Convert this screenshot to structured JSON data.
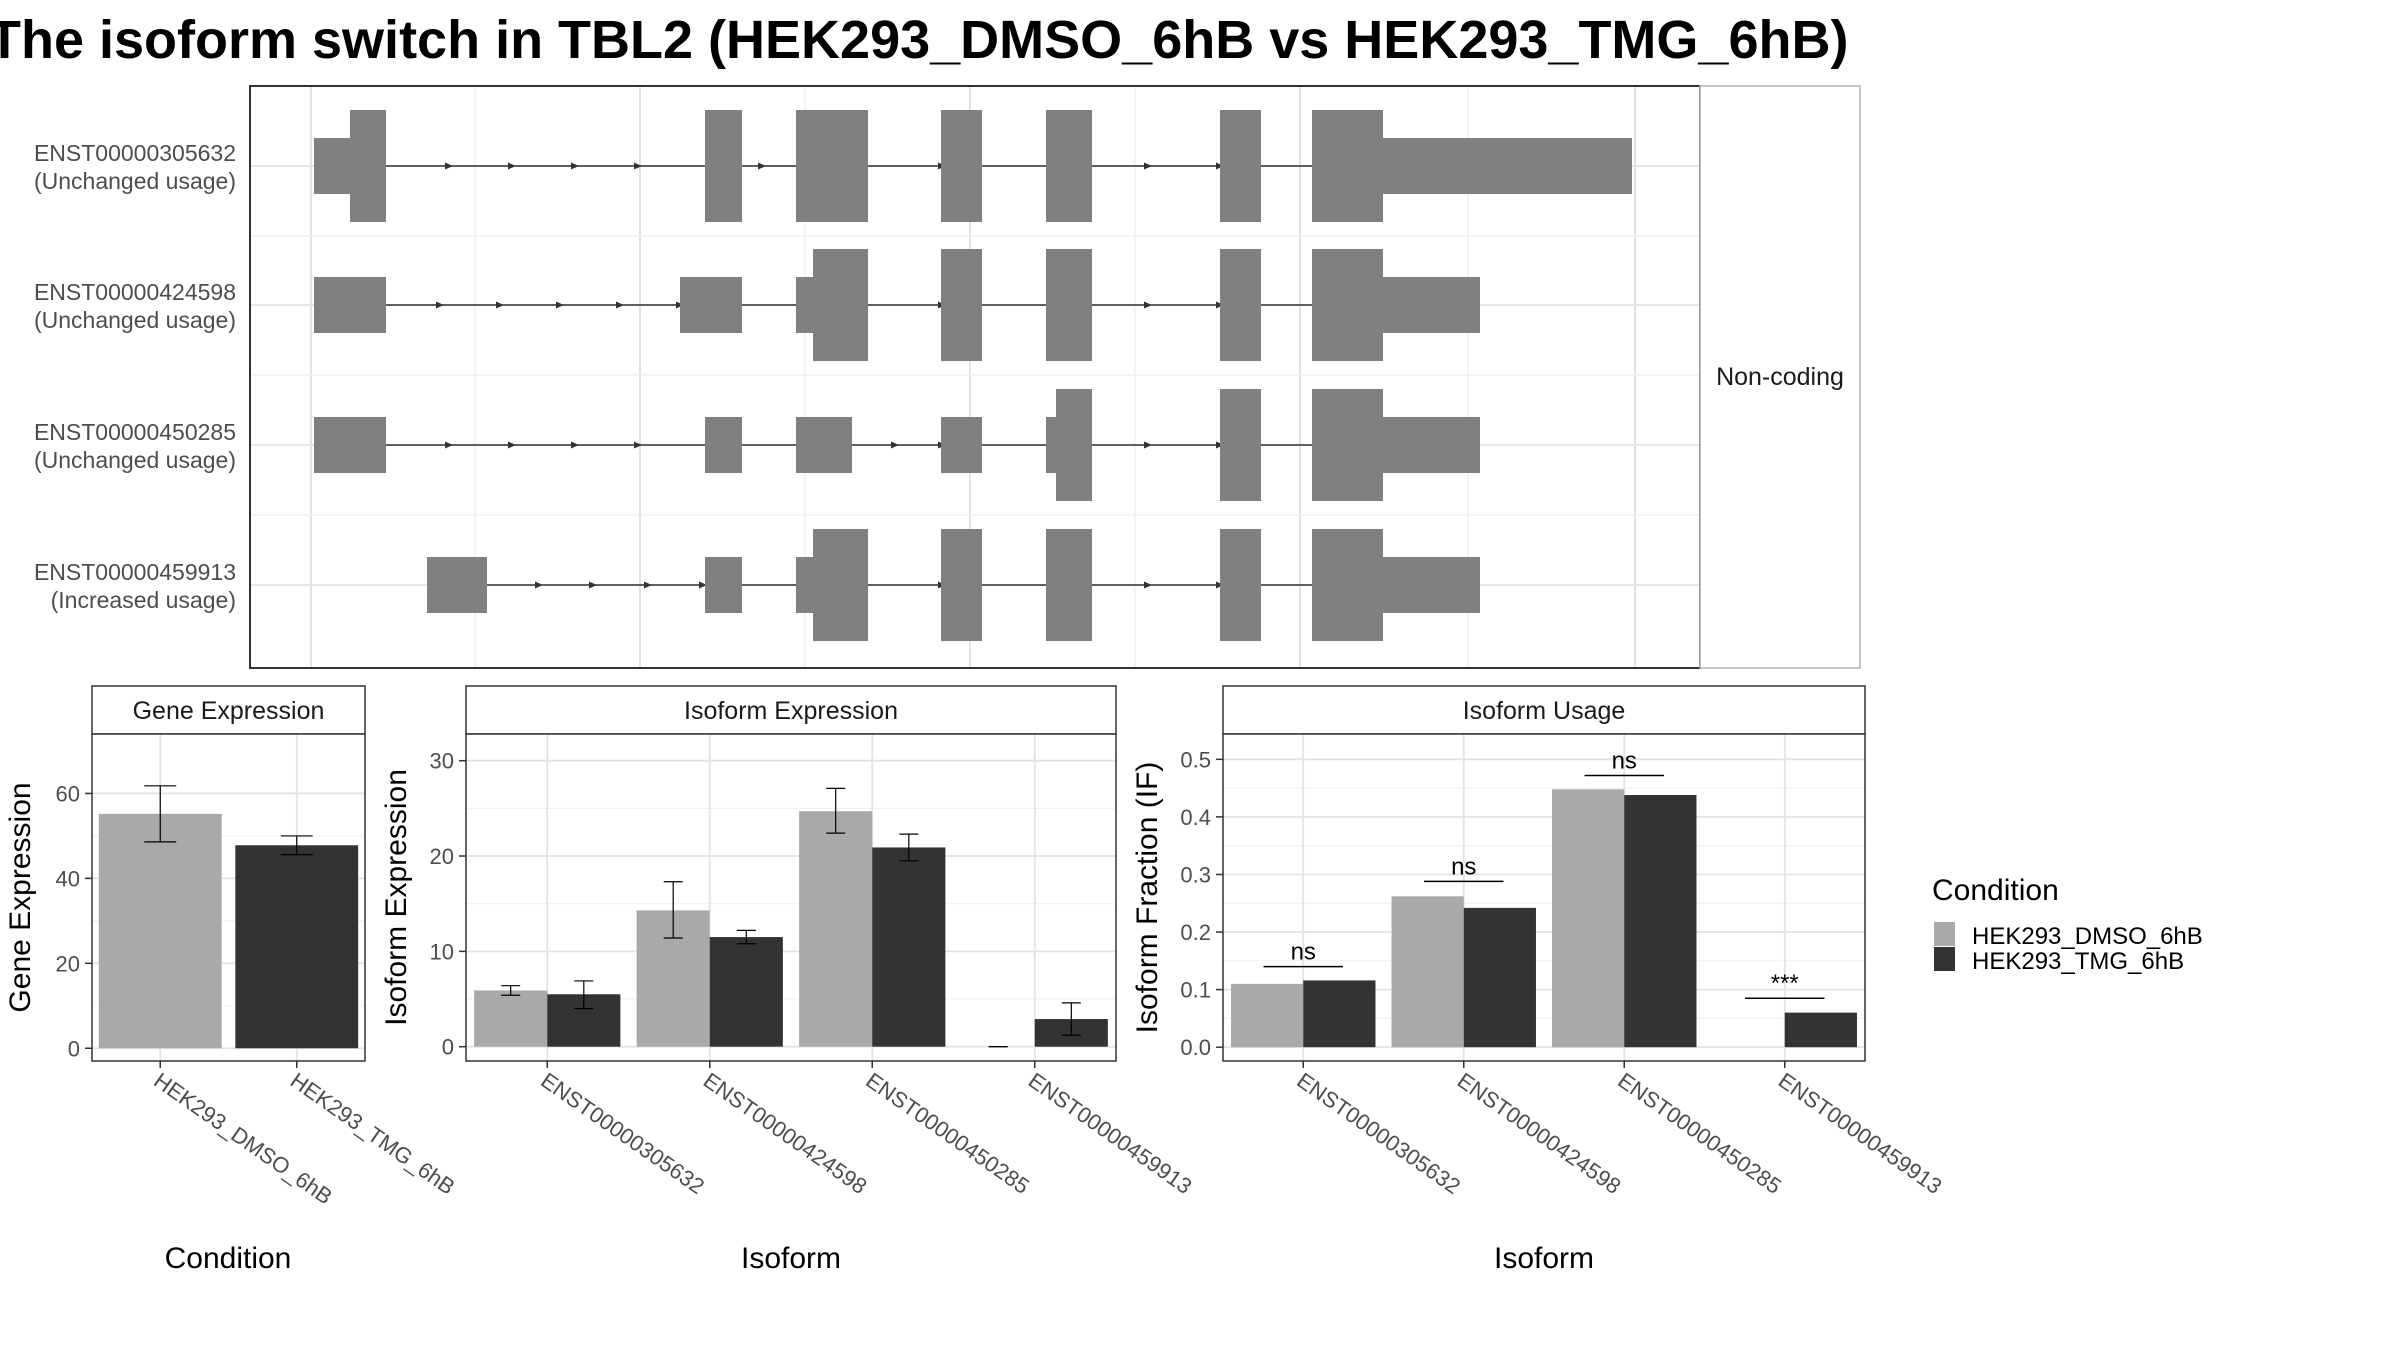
{
  "title": "The isoform switch in TBL2 (HEK293_DMSO_6hB vs HEK293_TMG_6hB)",
  "colors": {
    "control": "#a9a9a9",
    "treatment": "#333333",
    "exon": "#808080"
  },
  "legend": {
    "title": "Condition",
    "entries": [
      "HEK293_DMSO_6hB",
      "HEK293_TMG_6hB"
    ]
  },
  "chart_data": [
    {
      "type": "gene-structure",
      "strip": "Non-coding",
      "transcripts": [
        {
          "id": "ENST00000305632",
          "usage": "(Unchanged usage)"
        },
        {
          "id": "ENST00000424598",
          "usage": "(Unchanged usage)"
        },
        {
          "id": "ENST00000450285",
          "usage": "(Unchanged usage)"
        },
        {
          "id": "ENST00000459913",
          "usage": "(Increased usage)"
        }
      ]
    },
    {
      "type": "bar",
      "strip": "Gene Expression",
      "xlabel": "Condition",
      "ylabel": "Gene Expression",
      "categories": [
        "HEK293_DMSO_6hB",
        "HEK293_TMG_6hB"
      ],
      "values": [
        55.2,
        47.8
      ],
      "errors": [
        [
          48.6,
          61.8
        ],
        [
          45.6,
          50.0
        ]
      ],
      "ylim": [
        -3,
        74
      ],
      "yticks": [
        0,
        20,
        40,
        60
      ]
    },
    {
      "type": "bar",
      "strip": "Isoform Expression",
      "xlabel": "Isoform",
      "ylabel": "Isoform Expression",
      "categories": [
        "ENST00000305632",
        "ENST00000424598",
        "ENST00000450285",
        "ENST00000459913"
      ],
      "series": [
        {
          "name": "HEK293_DMSO_6hB",
          "values": [
            5.9,
            14.3,
            24.7,
            0.0
          ],
          "errors": [
            [
              5.4,
              6.4
            ],
            [
              11.4,
              17.3
            ],
            [
              22.4,
              27.1
            ],
            [
              0.0,
              0.0
            ]
          ]
        },
        {
          "name": "HEK293_TMG_6hB",
          "values": [
            5.5,
            11.5,
            20.9,
            2.9
          ],
          "errors": [
            [
              4.0,
              6.9
            ],
            [
              10.8,
              12.2
            ],
            [
              19.5,
              22.3
            ],
            [
              1.2,
              4.6
            ]
          ]
        }
      ],
      "ylim": [
        -1.5,
        32.8
      ],
      "yticks": [
        0,
        10,
        20,
        30
      ]
    },
    {
      "type": "bar",
      "strip": "Isoform Usage",
      "xlabel": "Isoform",
      "ylabel": "Isoform Fraction (IF)",
      "categories": [
        "ENST00000305632",
        "ENST00000424598",
        "ENST00000450285",
        "ENST00000459913"
      ],
      "series": [
        {
          "name": "HEK293_DMSO_6hB",
          "values": [
            0.11,
            0.262,
            0.448,
            0.0
          ]
        },
        {
          "name": "HEK293_TMG_6hB",
          "values": [
            0.116,
            0.242,
            0.438,
            0.06
          ]
        }
      ],
      "significance": [
        {
          "label": "ns",
          "y": 0.14
        },
        {
          "label": "ns",
          "y": 0.288
        },
        {
          "label": "ns",
          "y": 0.472
        },
        {
          "label": "***",
          "y": 0.085
        }
      ],
      "ylim": [
        -0.024,
        0.544
      ],
      "yticks": [
        0.0,
        0.1,
        0.2,
        0.3,
        0.4,
        0.5
      ],
      "ytick_labels": [
        "0.0",
        "0.1",
        "0.2",
        "0.3",
        "0.4",
        "0.5"
      ]
    }
  ]
}
